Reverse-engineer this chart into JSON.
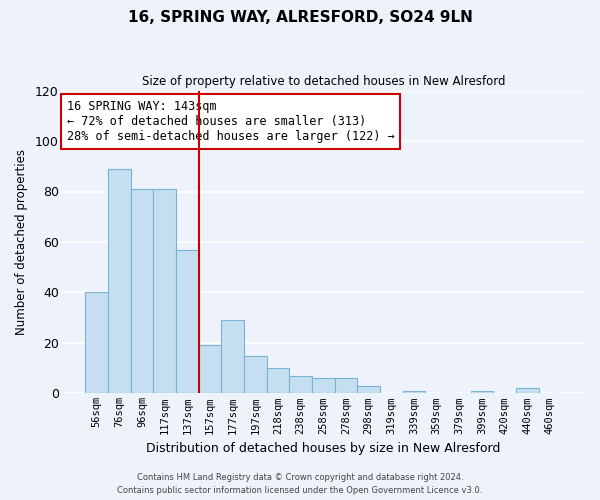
{
  "title": "16, SPRING WAY, ALRESFORD, SO24 9LN",
  "subtitle": "Size of property relative to detached houses in New Alresford",
  "xlabel": "Distribution of detached houses by size in New Alresford",
  "ylabel": "Number of detached properties",
  "bar_labels": [
    "56sqm",
    "76sqm",
    "96sqm",
    "117sqm",
    "137sqm",
    "157sqm",
    "177sqm",
    "197sqm",
    "218sqm",
    "238sqm",
    "258sqm",
    "278sqm",
    "298sqm",
    "319sqm",
    "339sqm",
    "359sqm",
    "379sqm",
    "399sqm",
    "420sqm",
    "440sqm",
    "460sqm"
  ],
  "bar_values": [
    40,
    89,
    81,
    81,
    57,
    19,
    29,
    15,
    10,
    7,
    6,
    6,
    3,
    0,
    1,
    0,
    0,
    1,
    0,
    2,
    0
  ],
  "bar_color": "#c5dff0",
  "bar_edge_color": "#7ab4d4",
  "vline_x": 4.5,
  "vline_color": "#cc0000",
  "annotation_text": "16 SPRING WAY: 143sqm\n← 72% of detached houses are smaller (313)\n28% of semi-detached houses are larger (122) →",
  "annotation_box_color": "white",
  "annotation_box_edge_color": "#cc0000",
  "ylim": [
    0,
    120
  ],
  "yticks": [
    0,
    20,
    40,
    60,
    80,
    100,
    120
  ],
  "footer1": "Contains HM Land Registry data © Crown copyright and database right 2024.",
  "footer2": "Contains public sector information licensed under the Open Government Licence v3.0.",
  "background_color": "#eef2fb",
  "grid_color": "white"
}
